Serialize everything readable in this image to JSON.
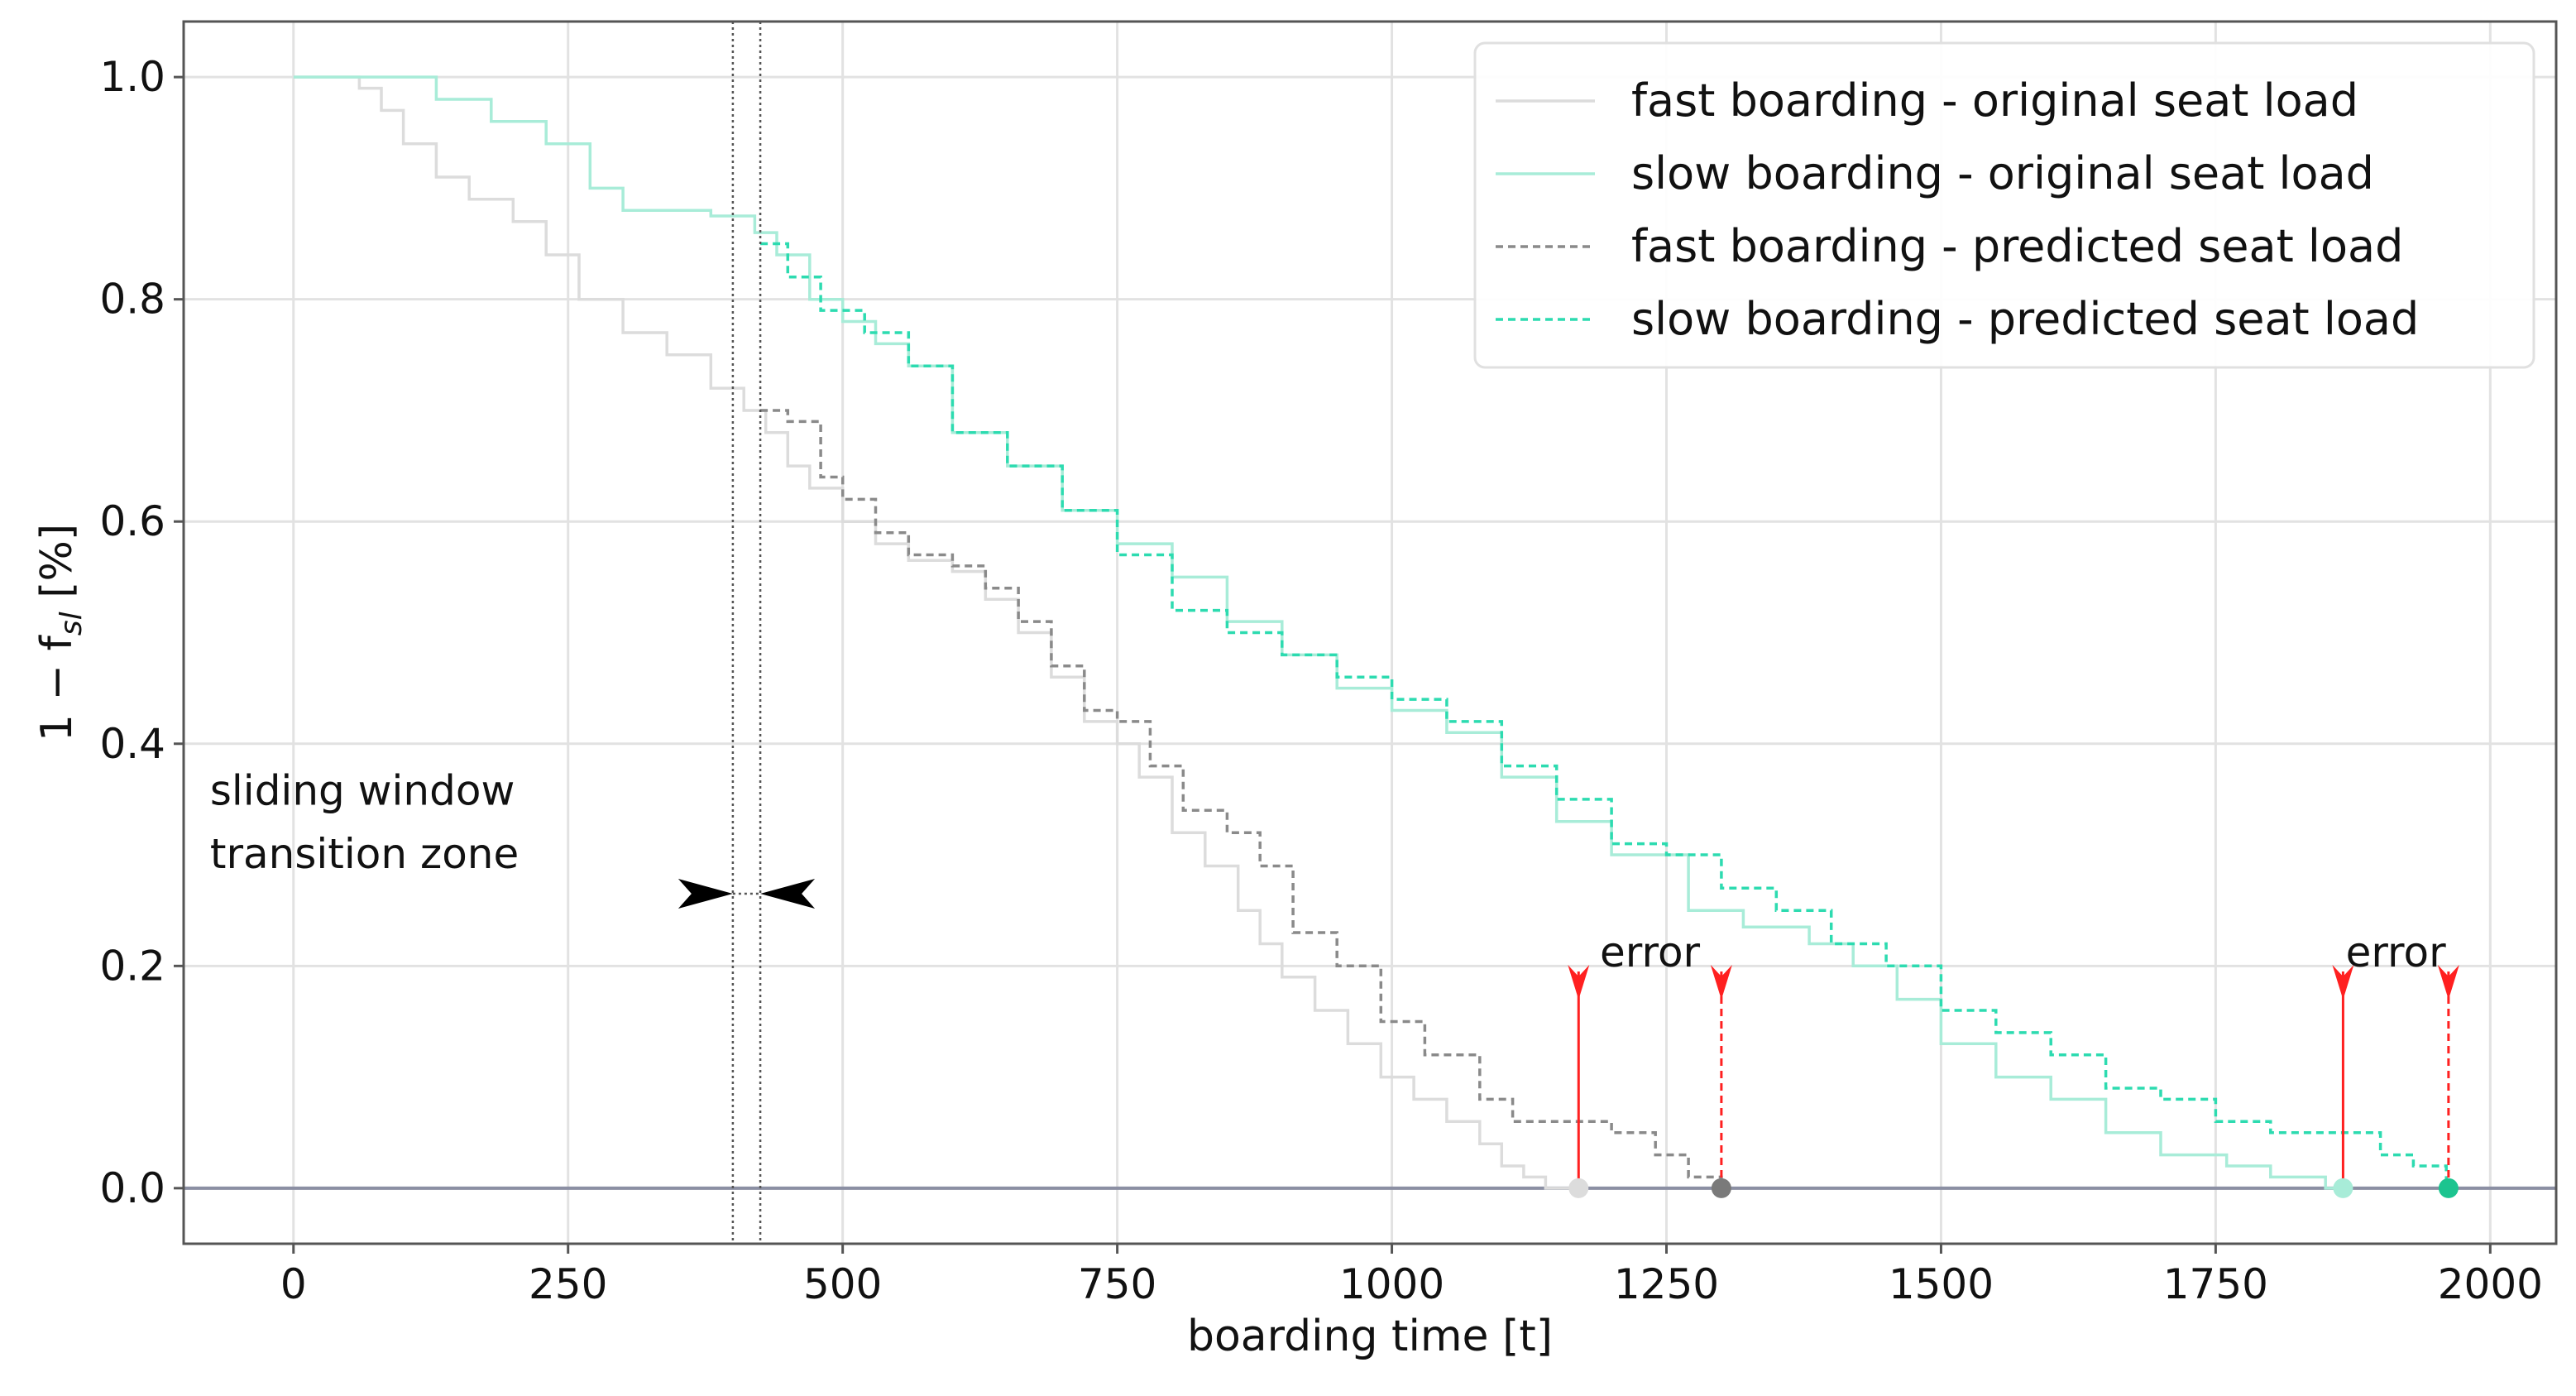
{
  "chart_data": {
    "type": "line",
    "title": "",
    "xlabel": "boarding time [t]",
    "ylabel": "1 − f",
    "ylabel_sub": "sl",
    "ylabel_unit": " [%]",
    "xlim": [
      -100,
      2060
    ],
    "ylim": [
      -0.05,
      1.05
    ],
    "xticks": [
      0,
      250,
      500,
      750,
      1000,
      1250,
      1500,
      1750,
      2000
    ],
    "yticks": [
      0.0,
      0.2,
      0.4,
      0.6,
      0.8,
      1.0
    ],
    "xtick_labels": [
      "0",
      "250",
      "500",
      "750",
      "1000",
      "1250",
      "1500",
      "1750",
      "2000"
    ],
    "ytick_labels": [
      "0.0",
      "0.2",
      "0.4",
      "0.6",
      "0.8",
      "1.0"
    ],
    "grid": true,
    "legend_position": "top-right",
    "series": [
      {
        "name": "fast boarding - original seat load",
        "color": "#dcdcdc",
        "style": "solid",
        "points": [
          [
            0,
            1.0
          ],
          [
            60,
            0.99
          ],
          [
            80,
            0.97
          ],
          [
            100,
            0.94
          ],
          [
            130,
            0.91
          ],
          [
            160,
            0.89
          ],
          [
            200,
            0.87
          ],
          [
            230,
            0.84
          ],
          [
            260,
            0.8
          ],
          [
            300,
            0.77
          ],
          [
            340,
            0.75
          ],
          [
            380,
            0.72
          ],
          [
            410,
            0.7
          ],
          [
            430,
            0.68
          ],
          [
            450,
            0.65
          ],
          [
            470,
            0.63
          ],
          [
            500,
            0.6
          ],
          [
            530,
            0.58
          ],
          [
            560,
            0.565
          ],
          [
            600,
            0.555
          ],
          [
            630,
            0.53
          ],
          [
            660,
            0.5
          ],
          [
            690,
            0.46
          ],
          [
            720,
            0.42
          ],
          [
            750,
            0.4
          ],
          [
            770,
            0.37
          ],
          [
            800,
            0.32
          ],
          [
            830,
            0.29
          ],
          [
            860,
            0.25
          ],
          [
            880,
            0.22
          ],
          [
            900,
            0.19
          ],
          [
            930,
            0.16
          ],
          [
            960,
            0.13
          ],
          [
            990,
            0.1
          ],
          [
            1020,
            0.08
          ],
          [
            1050,
            0.06
          ],
          [
            1080,
            0.04
          ],
          [
            1100,
            0.02
          ],
          [
            1120,
            0.01
          ],
          [
            1140,
            0.0
          ],
          [
            1170,
            0.0
          ]
        ]
      },
      {
        "name": "slow boarding - original seat load",
        "color": "#a8ecd8",
        "style": "solid",
        "points": [
          [
            0,
            1.0
          ],
          [
            100,
            1.0
          ],
          [
            130,
            0.98
          ],
          [
            180,
            0.96
          ],
          [
            230,
            0.94
          ],
          [
            270,
            0.9
          ],
          [
            300,
            0.88
          ],
          [
            380,
            0.875
          ],
          [
            420,
            0.86
          ],
          [
            440,
            0.84
          ],
          [
            470,
            0.8
          ],
          [
            500,
            0.78
          ],
          [
            530,
            0.76
          ],
          [
            560,
            0.74
          ],
          [
            600,
            0.68
          ],
          [
            650,
            0.65
          ],
          [
            700,
            0.61
          ],
          [
            750,
            0.58
          ],
          [
            800,
            0.55
          ],
          [
            850,
            0.51
          ],
          [
            900,
            0.48
          ],
          [
            950,
            0.45
          ],
          [
            1000,
            0.43
          ],
          [
            1050,
            0.41
          ],
          [
            1100,
            0.37
          ],
          [
            1150,
            0.33
          ],
          [
            1200,
            0.3
          ],
          [
            1270,
            0.25
          ],
          [
            1320,
            0.235
          ],
          [
            1380,
            0.22
          ],
          [
            1420,
            0.2
          ],
          [
            1460,
            0.17
          ],
          [
            1500,
            0.13
          ],
          [
            1550,
            0.1
          ],
          [
            1600,
            0.08
          ],
          [
            1650,
            0.05
          ],
          [
            1700,
            0.03
          ],
          [
            1760,
            0.02
          ],
          [
            1800,
            0.01
          ],
          [
            1850,
            0.0
          ],
          [
            1866,
            0.0
          ]
        ]
      },
      {
        "name": "fast boarding - predicted seat load",
        "color": "#8a8a8a",
        "style": "dashed",
        "points": [
          [
            425,
            0.7
          ],
          [
            450,
            0.69
          ],
          [
            480,
            0.64
          ],
          [
            500,
            0.62
          ],
          [
            530,
            0.59
          ],
          [
            560,
            0.57
          ],
          [
            600,
            0.56
          ],
          [
            630,
            0.54
          ],
          [
            660,
            0.51
          ],
          [
            690,
            0.47
          ],
          [
            720,
            0.43
          ],
          [
            750,
            0.42
          ],
          [
            780,
            0.38
          ],
          [
            810,
            0.34
          ],
          [
            850,
            0.32
          ],
          [
            880,
            0.29
          ],
          [
            910,
            0.23
          ],
          [
            950,
            0.2
          ],
          [
            990,
            0.15
          ],
          [
            1030,
            0.12
          ],
          [
            1080,
            0.08
          ],
          [
            1110,
            0.06
          ],
          [
            1150,
            0.06
          ],
          [
            1200,
            0.05
          ],
          [
            1240,
            0.03
          ],
          [
            1270,
            0.01
          ],
          [
            1300,
            0.0
          ]
        ]
      },
      {
        "name": "slow boarding - predicted seat load",
        "color": "#2ddbb0",
        "style": "dashed",
        "points": [
          [
            425,
            0.85
          ],
          [
            450,
            0.82
          ],
          [
            480,
            0.79
          ],
          [
            520,
            0.77
          ],
          [
            560,
            0.74
          ],
          [
            600,
            0.68
          ],
          [
            650,
            0.65
          ],
          [
            700,
            0.61
          ],
          [
            750,
            0.57
          ],
          [
            800,
            0.52
          ],
          [
            850,
            0.5
          ],
          [
            900,
            0.48
          ],
          [
            950,
            0.46
          ],
          [
            1000,
            0.44
          ],
          [
            1050,
            0.42
          ],
          [
            1100,
            0.38
          ],
          [
            1150,
            0.35
          ],
          [
            1200,
            0.31
          ],
          [
            1250,
            0.3
          ],
          [
            1300,
            0.27
          ],
          [
            1350,
            0.25
          ],
          [
            1400,
            0.22
          ],
          [
            1450,
            0.2
          ],
          [
            1500,
            0.16
          ],
          [
            1550,
            0.14
          ],
          [
            1600,
            0.12
          ],
          [
            1650,
            0.09
          ],
          [
            1700,
            0.08
          ],
          [
            1750,
            0.06
          ],
          [
            1800,
            0.05
          ],
          [
            1860,
            0.05
          ],
          [
            1900,
            0.03
          ],
          [
            1930,
            0.02
          ],
          [
            1960,
            0.0
          ]
        ]
      }
    ],
    "transition_zone": {
      "x_start": 400,
      "x_end": 425,
      "label_line1": "sliding window",
      "label_line2": "transition zone"
    },
    "error_annotations": [
      {
        "label": "error",
        "original_x": 1170,
        "predicted_x": 1300,
        "original_dot_color": "#dcdcdc",
        "predicted_dot_color": "#7a7a7a",
        "top_y": 0.195
      },
      {
        "label": "error",
        "original_x": 1866,
        "predicted_x": 1962,
        "original_dot_color": "#a8ecd8",
        "predicted_dot_color": "#1cc48f",
        "top_y": 0.195
      }
    ],
    "arrow_color": "#ff2020"
  }
}
